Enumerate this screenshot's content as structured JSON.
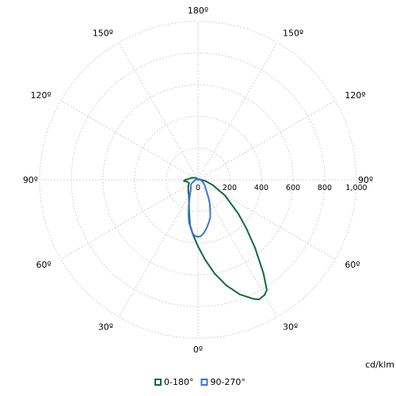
{
  "chart_data": {
    "type": "polar-line",
    "unit_label": "cd/klm",
    "radial_ticks": [
      {
        "value": 0,
        "label": "0"
      },
      {
        "value": 200,
        "label": "200"
      },
      {
        "value": 400,
        "label": "400"
      },
      {
        "value": 600,
        "label": "600"
      },
      {
        "value": 800,
        "label": "800"
      },
      {
        "value": 1000,
        "label": "1,000"
      }
    ],
    "rmax": 1000,
    "angle_labels": [
      {
        "deg": 0,
        "label": "0º"
      },
      {
        "deg": 30,
        "label": "30º"
      },
      {
        "deg": -30,
        "label": "30º"
      },
      {
        "deg": 60,
        "label": "60º"
      },
      {
        "deg": -60,
        "label": "60º"
      },
      {
        "deg": 90,
        "label": "90º"
      },
      {
        "deg": -90,
        "label": "90º"
      },
      {
        "deg": 120,
        "label": "120º"
      },
      {
        "deg": -120,
        "label": "120º"
      },
      {
        "deg": 150,
        "label": "150º"
      },
      {
        "deg": -150,
        "label": "150º"
      },
      {
        "deg": 180,
        "label": "180º"
      }
    ],
    "series": [
      {
        "name": "0-180°",
        "color": "#0e6b3a",
        "points": [
          [
            -180,
            0
          ],
          [
            -165,
            5
          ],
          [
            -150,
            8
          ],
          [
            -135,
            15
          ],
          [
            -120,
            25
          ],
          [
            -105,
            45
          ],
          [
            -95,
            60
          ],
          [
            -90,
            80
          ],
          [
            -85,
            90
          ],
          [
            -80,
            70
          ],
          [
            -70,
            60
          ],
          [
            -60,
            70
          ],
          [
            -50,
            80
          ],
          [
            -40,
            95
          ],
          [
            -30,
            115
          ],
          [
            -20,
            165
          ],
          [
            -15,
            215
          ],
          [
            -10,
            290
          ],
          [
            -5,
            350
          ],
          [
            0,
            420
          ],
          [
            5,
            505
          ],
          [
            10,
            600
          ],
          [
            15,
            690
          ],
          [
            20,
            770
          ],
          [
            25,
            830
          ],
          [
            27,
            848
          ],
          [
            30,
            840
          ],
          [
            32,
            820
          ],
          [
            35,
            720
          ],
          [
            40,
            560
          ],
          [
            45,
            430
          ],
          [
            50,
            330
          ],
          [
            60,
            195
          ],
          [
            70,
            100
          ],
          [
            80,
            50
          ],
          [
            90,
            20
          ],
          [
            105,
            10
          ],
          [
            120,
            6
          ],
          [
            150,
            3
          ],
          [
            180,
            0
          ]
        ]
      },
      {
        "name": "90-270°",
        "color": "#3b73e0",
        "points": [
          [
            -180,
            0
          ],
          [
            -150,
            6
          ],
          [
            -120,
            10
          ],
          [
            -100,
            12
          ],
          [
            -90,
            14
          ],
          [
            -80,
            20
          ],
          [
            -70,
            28
          ],
          [
            -60,
            48
          ],
          [
            -50,
            60
          ],
          [
            -40,
            70
          ],
          [
            -30,
            98
          ],
          [
            -25,
            125
          ],
          [
            -20,
            170
          ],
          [
            -17,
            202
          ],
          [
            -15,
            232
          ],
          [
            -12,
            275
          ],
          [
            -9,
            305
          ],
          [
            -6,
            338
          ],
          [
            -3,
            356
          ],
          [
            0,
            360
          ],
          [
            3,
            356
          ],
          [
            6,
            340
          ],
          [
            10,
            310
          ],
          [
            14,
            280
          ],
          [
            18,
            250
          ],
          [
            22,
            206
          ],
          [
            26,
            170
          ],
          [
            30,
            133
          ],
          [
            35,
            100
          ],
          [
            40,
            78
          ],
          [
            50,
            55
          ],
          [
            60,
            40
          ],
          [
            70,
            28
          ],
          [
            80,
            20
          ],
          [
            90,
            14
          ],
          [
            100,
            12
          ],
          [
            120,
            10
          ],
          [
            150,
            6
          ],
          [
            180,
            0
          ]
        ]
      }
    ]
  }
}
